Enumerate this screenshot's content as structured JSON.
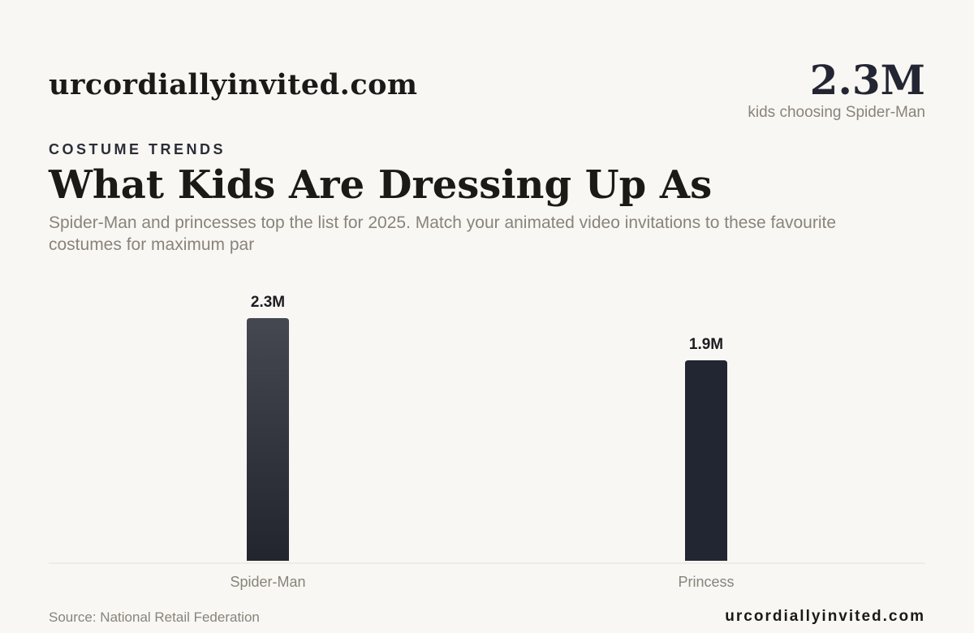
{
  "header": {
    "brand": "urcordiallyinvited.com",
    "stat_value": "2.3M",
    "stat_label": "kids choosing Spider-Man"
  },
  "kicker": "COSTUME TRENDS",
  "title": "What Kids Are Dressing Up As",
  "subtitle": "Spider-Man and princesses top the list for 2025. Match your animated video invitations to these favourite costumes for maximum par",
  "chart_data": {
    "type": "bar",
    "categories": [
      "Spider-Man",
      "Princess"
    ],
    "values": [
      2.3,
      1.9
    ],
    "value_labels": [
      "2.3M",
      "1.9M"
    ],
    "ylim": [
      0,
      2.3
    ],
    "grid": false,
    "colors": [
      "#3f414b",
      "#222532"
    ]
  },
  "footer": {
    "source": "Source: National Retail Federation",
    "brand": "urcordiallyinvited.com"
  }
}
